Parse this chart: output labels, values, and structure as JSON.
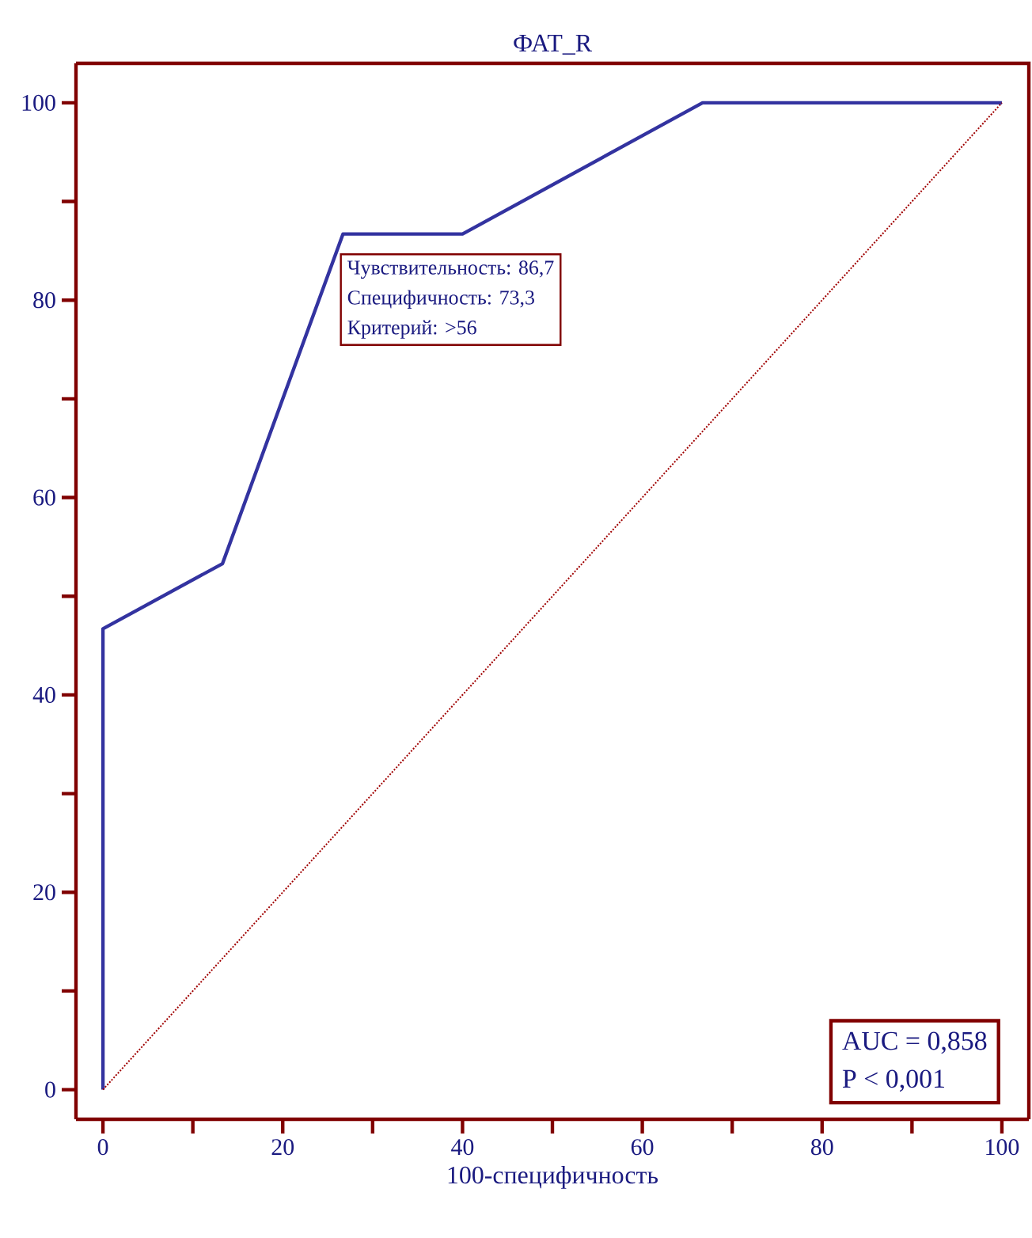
{
  "chart_data": {
    "type": "line",
    "title": "ФАТ_R",
    "xlabel": "100-специфичность",
    "xlim": [
      -3,
      103
    ],
    "ylim": [
      -3,
      104
    ],
    "xticks": [
      0,
      20,
      40,
      60,
      80,
      100
    ],
    "yticks": [
      0,
      20,
      40,
      60,
      80,
      100
    ],
    "grid": false,
    "marker": "none",
    "series": [
      {
        "color": "#3333a0",
        "line_style": "solid",
        "x": [
          0,
          0,
          13.3,
          26.7,
          40,
          66.7,
          100
        ],
        "values": [
          0,
          46.7,
          53.3,
          86.7,
          86.7,
          100,
          100
        ]
      },
      {
        "color": "#a00000",
        "line_style": "dotted",
        "x": [
          0,
          100
        ],
        "values": [
          0,
          100
        ]
      }
    ],
    "annotations": [
      "Чувствительность: 86,7",
      "Специфичность: 73,3",
      "Критерий: >56",
      "AUC = 0,858",
      "P < 0,001"
    ]
  }
}
